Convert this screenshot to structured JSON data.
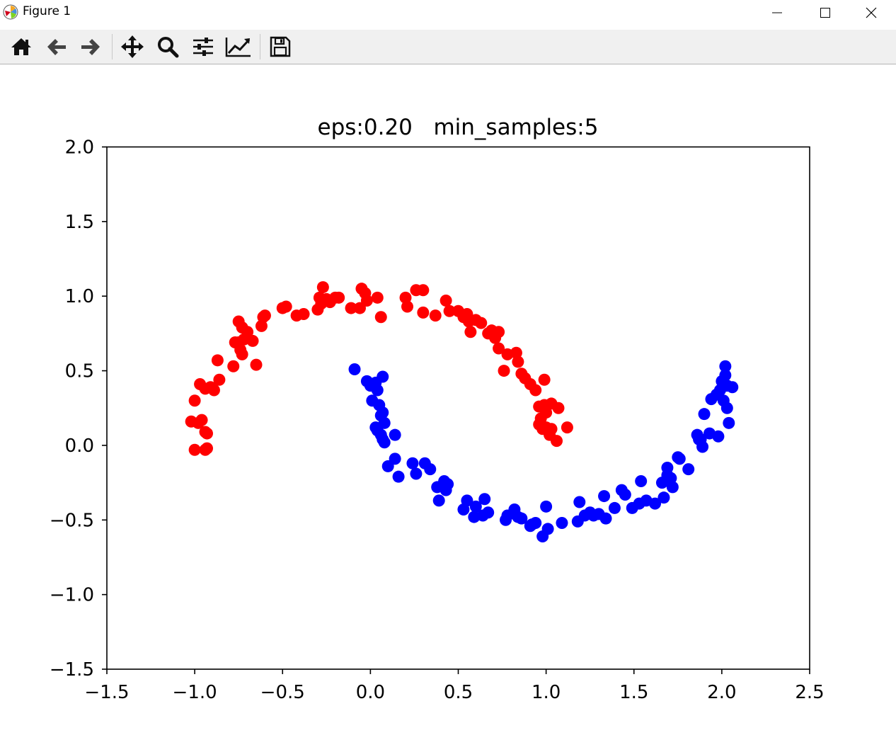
{
  "window": {
    "title": "Figure 1",
    "minimize_icon": "minimize-icon",
    "maximize_icon": "maximize-icon",
    "close_icon": "close-icon"
  },
  "toolbar": {
    "items": [
      {
        "name": "home-icon",
        "tooltip": "Home"
      },
      {
        "name": "back-arrow-icon",
        "tooltip": "Back"
      },
      {
        "name": "forward-arrow-icon",
        "tooltip": "Forward"
      },
      {
        "name": "pan-move-icon",
        "tooltip": "Pan"
      },
      {
        "name": "zoom-magnifier-icon",
        "tooltip": "Zoom"
      },
      {
        "name": "subplots-configure-icon",
        "tooltip": "Subplots"
      },
      {
        "name": "edit-axis-icon",
        "tooltip": "Customize"
      },
      {
        "name": "save-floppy-icon",
        "tooltip": "Save"
      }
    ]
  },
  "chart_data": {
    "type": "scatter",
    "title": "eps:0.20   min_samples:5",
    "xlabel": "",
    "ylabel": "",
    "xlim": [
      -1.5,
      2.5
    ],
    "ylim": [
      -1.5,
      2.0
    ],
    "xticks": [
      -1.5,
      -1.0,
      -0.5,
      0.0,
      0.5,
      1.0,
      1.5,
      2.0,
      2.5
    ],
    "xtick_labels": [
      "−1.5",
      "−1.0",
      "−0.5",
      "0.0",
      "0.5",
      "1.0",
      "1.5",
      "2.0",
      "2.5"
    ],
    "yticks": [
      -1.5,
      -1.0,
      -0.5,
      0.0,
      0.5,
      1.0,
      1.5,
      2.0
    ],
    "ytick_labels": [
      "−1.5",
      "−1.0",
      "−0.5",
      "0.0",
      "0.5",
      "1.0",
      "1.5",
      "2.0"
    ],
    "grid": false,
    "series": [
      {
        "color": "#ff0000",
        "points": [
          [
            -1.0,
            0.3
          ],
          [
            -0.97,
            0.41
          ],
          [
            -1.02,
            0.16
          ],
          [
            -0.98,
            0.15
          ],
          [
            -0.96,
            0.17
          ],
          [
            -0.94,
            0.09
          ],
          [
            -0.93,
            0.08
          ],
          [
            -1.0,
            -0.03
          ],
          [
            -0.94,
            -0.03
          ],
          [
            -0.93,
            -0.02
          ],
          [
            -0.94,
            0.38
          ],
          [
            -0.91,
            0.39
          ],
          [
            -0.89,
            0.37
          ],
          [
            -0.86,
            0.44
          ],
          [
            -0.87,
            0.57
          ],
          [
            -0.78,
            0.53
          ],
          [
            -0.74,
            0.64
          ],
          [
            -0.73,
            0.61
          ],
          [
            -0.75,
            0.69
          ],
          [
            -0.77,
            0.69
          ],
          [
            -0.72,
            0.71
          ],
          [
            -0.7,
            0.76
          ],
          [
            -0.67,
            0.7
          ],
          [
            -0.65,
            0.54
          ],
          [
            -0.62,
            0.8
          ],
          [
            -0.75,
            0.83
          ],
          [
            -0.73,
            0.79
          ],
          [
            -0.61,
            0.86
          ],
          [
            -0.6,
            0.87
          ],
          [
            -0.5,
            0.92
          ],
          [
            -0.48,
            0.93
          ],
          [
            -0.42,
            0.87
          ],
          [
            -0.38,
            0.88
          ],
          [
            -0.3,
            0.91
          ],
          [
            -0.28,
            0.95
          ],
          [
            -0.29,
            0.99
          ],
          [
            -0.27,
            1.06
          ],
          [
            -0.25,
            0.98
          ],
          [
            -0.23,
            0.96
          ],
          [
            -0.2,
            0.99
          ],
          [
            -0.18,
            0.99
          ],
          [
            -0.11,
            0.92
          ],
          [
            -0.06,
            0.92
          ],
          [
            -0.05,
            1.05
          ],
          [
            -0.03,
            1.02
          ],
          [
            -0.02,
            0.97
          ],
          [
            0.04,
            0.99
          ],
          [
            0.06,
            0.86
          ],
          [
            0.2,
            0.99
          ],
          [
            0.21,
            0.93
          ],
          [
            0.26,
            1.04
          ],
          [
            0.3,
            1.04
          ],
          [
            0.3,
            0.89
          ],
          [
            0.37,
            0.87
          ],
          [
            0.43,
            0.97
          ],
          [
            0.45,
            0.9
          ],
          [
            0.5,
            0.9
          ],
          [
            0.53,
            0.86
          ],
          [
            0.55,
            0.88
          ],
          [
            0.56,
            0.83
          ],
          [
            0.57,
            0.76
          ],
          [
            0.6,
            0.84
          ],
          [
            0.63,
            0.82
          ],
          [
            0.67,
            0.75
          ],
          [
            0.69,
            0.77
          ],
          [
            0.71,
            0.72
          ],
          [
            0.73,
            0.76
          ],
          [
            0.73,
            0.65
          ],
          [
            0.76,
            0.5
          ],
          [
            0.78,
            0.61
          ],
          [
            0.83,
            0.62
          ],
          [
            0.84,
            0.56
          ],
          [
            0.86,
            0.48
          ],
          [
            0.88,
            0.45
          ],
          [
            0.91,
            0.41
          ],
          [
            0.94,
            0.37
          ],
          [
            0.99,
            0.44
          ],
          [
            0.96,
            0.26
          ],
          [
            0.99,
            0.27
          ],
          [
            1.0,
            0.22
          ],
          [
            0.97,
            0.18
          ],
          [
            0.96,
            0.14
          ],
          [
            0.98,
            0.11
          ],
          [
            1.0,
            0.12
          ],
          [
            1.03,
            0.28
          ],
          [
            1.07,
            0.25
          ],
          [
            1.03,
            0.11
          ],
          [
            1.02,
            0.07
          ],
          [
            1.06,
            0.03
          ],
          [
            1.12,
            0.12
          ]
        ]
      },
      {
        "color": "#0000ff",
        "points": [
          [
            -0.09,
            0.51
          ],
          [
            -0.02,
            0.43
          ],
          [
            0.0,
            0.4
          ],
          [
            0.03,
            0.42
          ],
          [
            0.04,
            0.37
          ],
          [
            0.01,
            0.3
          ],
          [
            0.05,
            0.27
          ],
          [
            0.07,
            0.46
          ],
          [
            0.07,
            0.22
          ],
          [
            0.06,
            0.2
          ],
          [
            0.08,
            0.15
          ],
          [
            0.03,
            0.12
          ],
          [
            0.04,
            0.1
          ],
          [
            0.06,
            0.07
          ],
          [
            0.07,
            0.04
          ],
          [
            0.08,
            0.02
          ],
          [
            0.14,
            0.07
          ],
          [
            0.1,
            -0.14
          ],
          [
            0.14,
            -0.09
          ],
          [
            0.16,
            -0.21
          ],
          [
            0.24,
            -0.12
          ],
          [
            0.26,
            -0.19
          ],
          [
            0.31,
            -0.12
          ],
          [
            0.34,
            -0.16
          ],
          [
            0.38,
            -0.28
          ],
          [
            0.39,
            -0.37
          ],
          [
            0.42,
            -0.24
          ],
          [
            0.43,
            -0.3
          ],
          [
            0.44,
            -0.26
          ],
          [
            0.53,
            -0.43
          ],
          [
            0.55,
            -0.37
          ],
          [
            0.59,
            -0.48
          ],
          [
            0.6,
            -0.41
          ],
          [
            0.65,
            -0.36
          ],
          [
            0.67,
            -0.45
          ],
          [
            0.64,
            -0.47
          ],
          [
            0.77,
            -0.5
          ],
          [
            0.78,
            -0.47
          ],
          [
            0.82,
            -0.43
          ],
          [
            0.84,
            -0.48
          ],
          [
            0.86,
            -0.49
          ],
          [
            0.91,
            -0.54
          ],
          [
            0.92,
            -0.53
          ],
          [
            0.94,
            -0.52
          ],
          [
            0.98,
            -0.61
          ],
          [
            1.0,
            -0.41
          ],
          [
            1.01,
            -0.56
          ],
          [
            1.09,
            -0.52
          ],
          [
            1.18,
            -0.51
          ],
          [
            1.19,
            -0.38
          ],
          [
            1.22,
            -0.47
          ],
          [
            1.25,
            -0.45
          ],
          [
            1.27,
            -0.47
          ],
          [
            1.3,
            -0.46
          ],
          [
            1.33,
            -0.34
          ],
          [
            1.34,
            -0.49
          ],
          [
            1.39,
            -0.42
          ],
          [
            1.43,
            -0.3
          ],
          [
            1.45,
            -0.33
          ],
          [
            1.49,
            -0.42
          ],
          [
            1.53,
            -0.39
          ],
          [
            1.54,
            -0.24
          ],
          [
            1.57,
            -0.37
          ],
          [
            1.62,
            -0.39
          ],
          [
            1.66,
            -0.25
          ],
          [
            1.67,
            -0.35
          ],
          [
            1.69,
            -0.2
          ],
          [
            1.71,
            -0.22
          ],
          [
            1.72,
            -0.28
          ],
          [
            1.69,
            -0.15
          ],
          [
            1.75,
            -0.08
          ],
          [
            1.76,
            -0.09
          ],
          [
            1.81,
            -0.16
          ],
          [
            1.86,
            0.07
          ],
          [
            1.87,
            0.04
          ],
          [
            1.88,
            0.04
          ],
          [
            1.89,
            -0.01
          ],
          [
            1.9,
            0.21
          ],
          [
            1.93,
            0.08
          ],
          [
            1.94,
            0.31
          ],
          [
            1.97,
            0.34
          ],
          [
            1.98,
            0.06
          ],
          [
            1.99,
            0.37
          ],
          [
            2.0,
            0.43
          ],
          [
            2.01,
            0.3
          ],
          [
            2.02,
            0.53
          ],
          [
            2.02,
            0.47
          ],
          [
            2.03,
            0.25
          ],
          [
            2.03,
            0.4
          ],
          [
            2.04,
            0.15
          ],
          [
            2.06,
            0.39
          ]
        ]
      }
    ]
  }
}
